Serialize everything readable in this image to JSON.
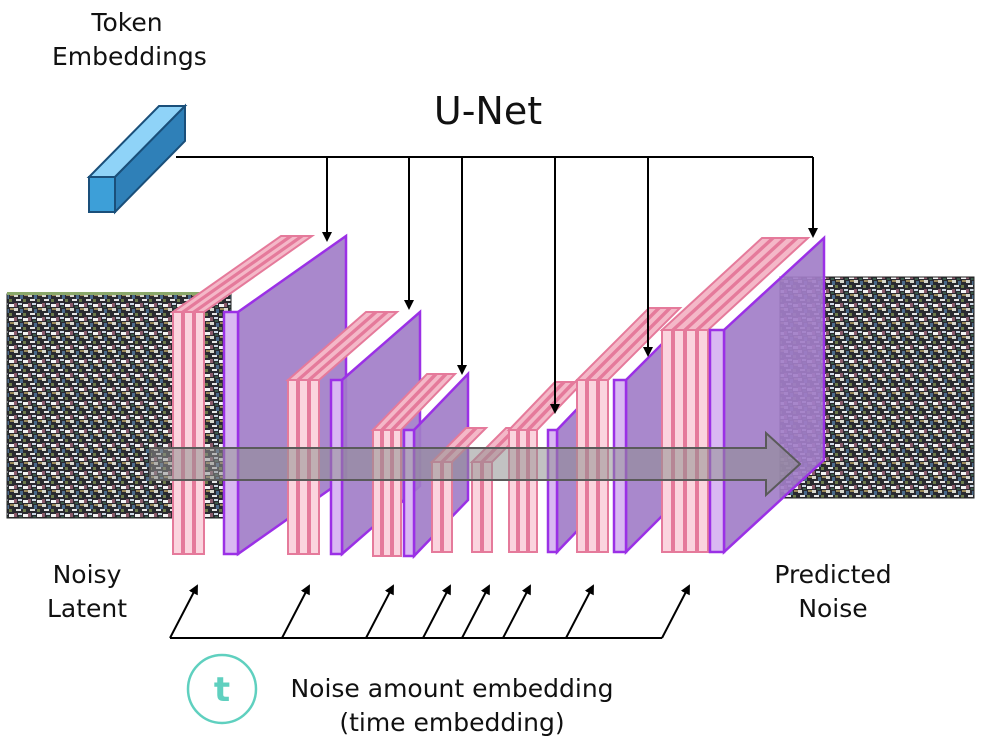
{
  "title": "U-Net",
  "labels": {
    "token_line1": "Token",
    "token_line2": "Embeddings",
    "input_line1": "Noisy",
    "input_line2": "Latent",
    "output_line1": "Predicted",
    "output_line2": "Noise",
    "time_line1": "Noise amount embedding",
    "time_line2": "(time embedding)",
    "time_symbol": "t"
  },
  "colors": {
    "token_block": "#3d9fd8",
    "layer_pink": "#e57a9b",
    "layer_purple": "#a27ec8",
    "layer_purple_border": "#9b30e6",
    "arrow": "#000000",
    "flow_arrow": "#7f7f7f",
    "time_circle": "#5fd0bf"
  },
  "icons": {
    "token": "token-embedding-block-icon",
    "time": "time-t-circle-icon"
  }
}
